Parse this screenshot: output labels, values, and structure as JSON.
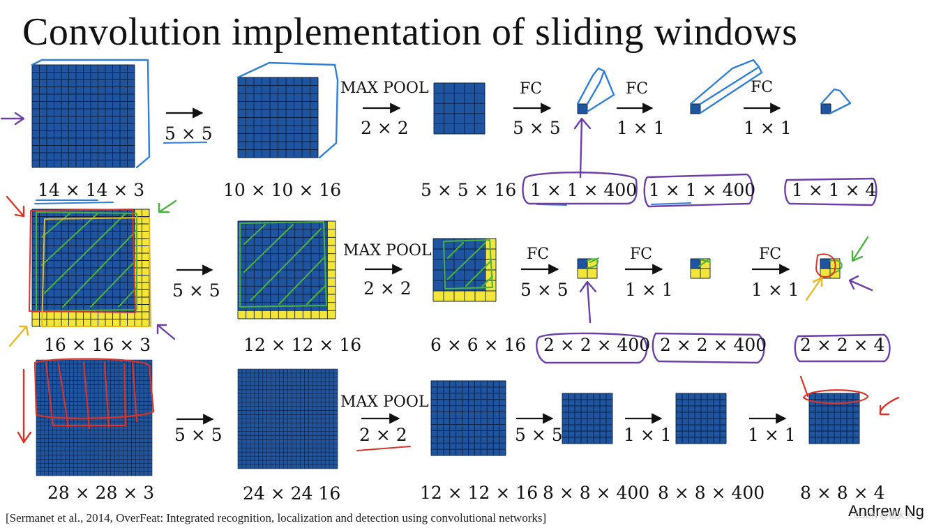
{
  "title": "Convolution implementation of sliding windows",
  "citation": "[Sermanet et al., 2014, OverFeat: Integrated recognition, localization and detection using convolutional networks]",
  "author": "Andrew Ng",
  "watermark": "CSDN @桓大人",
  "colors": {
    "block_blue": "#1f55a0",
    "grid_line": "#0c1f3d",
    "padding_yellow": "#f4e53b",
    "pen_purple": "#6a3fa8",
    "pen_blue": "#2f7fd6",
    "pen_green": "#49b33d",
    "pen_red": "#d8342a",
    "pen_yellow": "#e8b820"
  },
  "rows": [
    {
      "name": "14x14 input",
      "input_dims": "14 × 14  × 3",
      "stages": [
        {
          "op": "",
          "kernel": "5 × 5",
          "dims": "10 × 10 × 16"
        },
        {
          "op": "MAX POOL",
          "kernel": "2 × 2",
          "dims": "5 × 5 × 16"
        },
        {
          "op": "FC",
          "kernel": "5 × 5",
          "dims": "1 × 1 × 400"
        },
        {
          "op": "FC",
          "kernel": "1 × 1",
          "dims": "1 × 1 × 400"
        },
        {
          "op": "FC",
          "kernel": "1 × 1",
          "dims": "1 × 1 × 4"
        }
      ]
    },
    {
      "name": "16x16 input",
      "input_dims": "16 × 16 × 3",
      "stages": [
        {
          "op": "",
          "kernel": "5 × 5",
          "dims": "12 × 12 × 16"
        },
        {
          "op": "MAX POOL",
          "kernel": "2 × 2",
          "dims": "6 × 6 × 16"
        },
        {
          "op": "FC",
          "kernel": "5 × 5",
          "dims": "2 × 2 × 400"
        },
        {
          "op": "FC",
          "kernel": "1 × 1",
          "dims": "2 × 2 × 400"
        },
        {
          "op": "FC",
          "kernel": "1 × 1",
          "dims": "2 × 2 × 4"
        }
      ]
    },
    {
      "name": "28x28 input",
      "input_dims": "28 × 28 × 3",
      "stages": [
        {
          "op": "",
          "kernel": "5 × 5",
          "dims": "24 × 24 16"
        },
        {
          "op": "MAX POOL",
          "kernel": "2 × 2",
          "dims": "12 × 12 × 16"
        },
        {
          "op": "",
          "kernel": "5 × 5",
          "dims": "8 × 8 × 400"
        },
        {
          "op": "",
          "kernel": "1 × 1",
          "dims": "8 × 8 × 400"
        },
        {
          "op": "",
          "kernel": "1 × 1",
          "dims": "8 × 8 × 4"
        }
      ]
    }
  ]
}
